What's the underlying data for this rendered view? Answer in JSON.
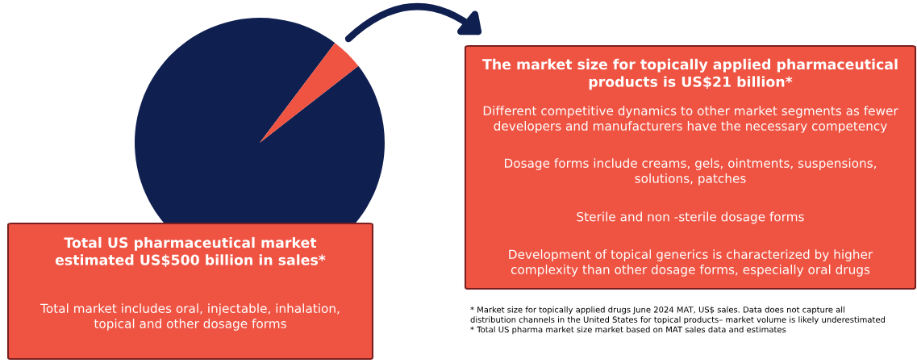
{
  "chart_data": {
    "type": "pie",
    "categories": [
      null,
      null
    ],
    "values": [
      95.8,
      4.2
    ],
    "colors": [
      "#0f1f4f",
      "#ef5443"
    ],
    "annotations": [
      "Total US pharmaceutical market\nestimated US$500 billion in sales*",
      "Total market includes oral, injectable, inhalation,\ntopical and other dosage forms",
      "The market size for topically applied pharmaceutical\nproducts is US$21 billion*",
      "Different competitive dynamics to other market segments as fewer\ndevelopers and manufacturers have the necessary competency",
      "Dosage forms include creams, gels, ointments, suspensions,\nsolutions, patches",
      "Sterile and non -sterile dosage forms",
      "Development of topical generics is characterized by higher\ncomplexity than other dosage forms, especially oral drugs",
      "* Market size for topically applied drugs June 2024 MAT, US$ sales. Data does not capture all\ndistribution channels in the United States for topical products– market volume is likely underestimated\n* Total US pharma market size market based on MAT sales data and estimates"
    ]
  }
}
